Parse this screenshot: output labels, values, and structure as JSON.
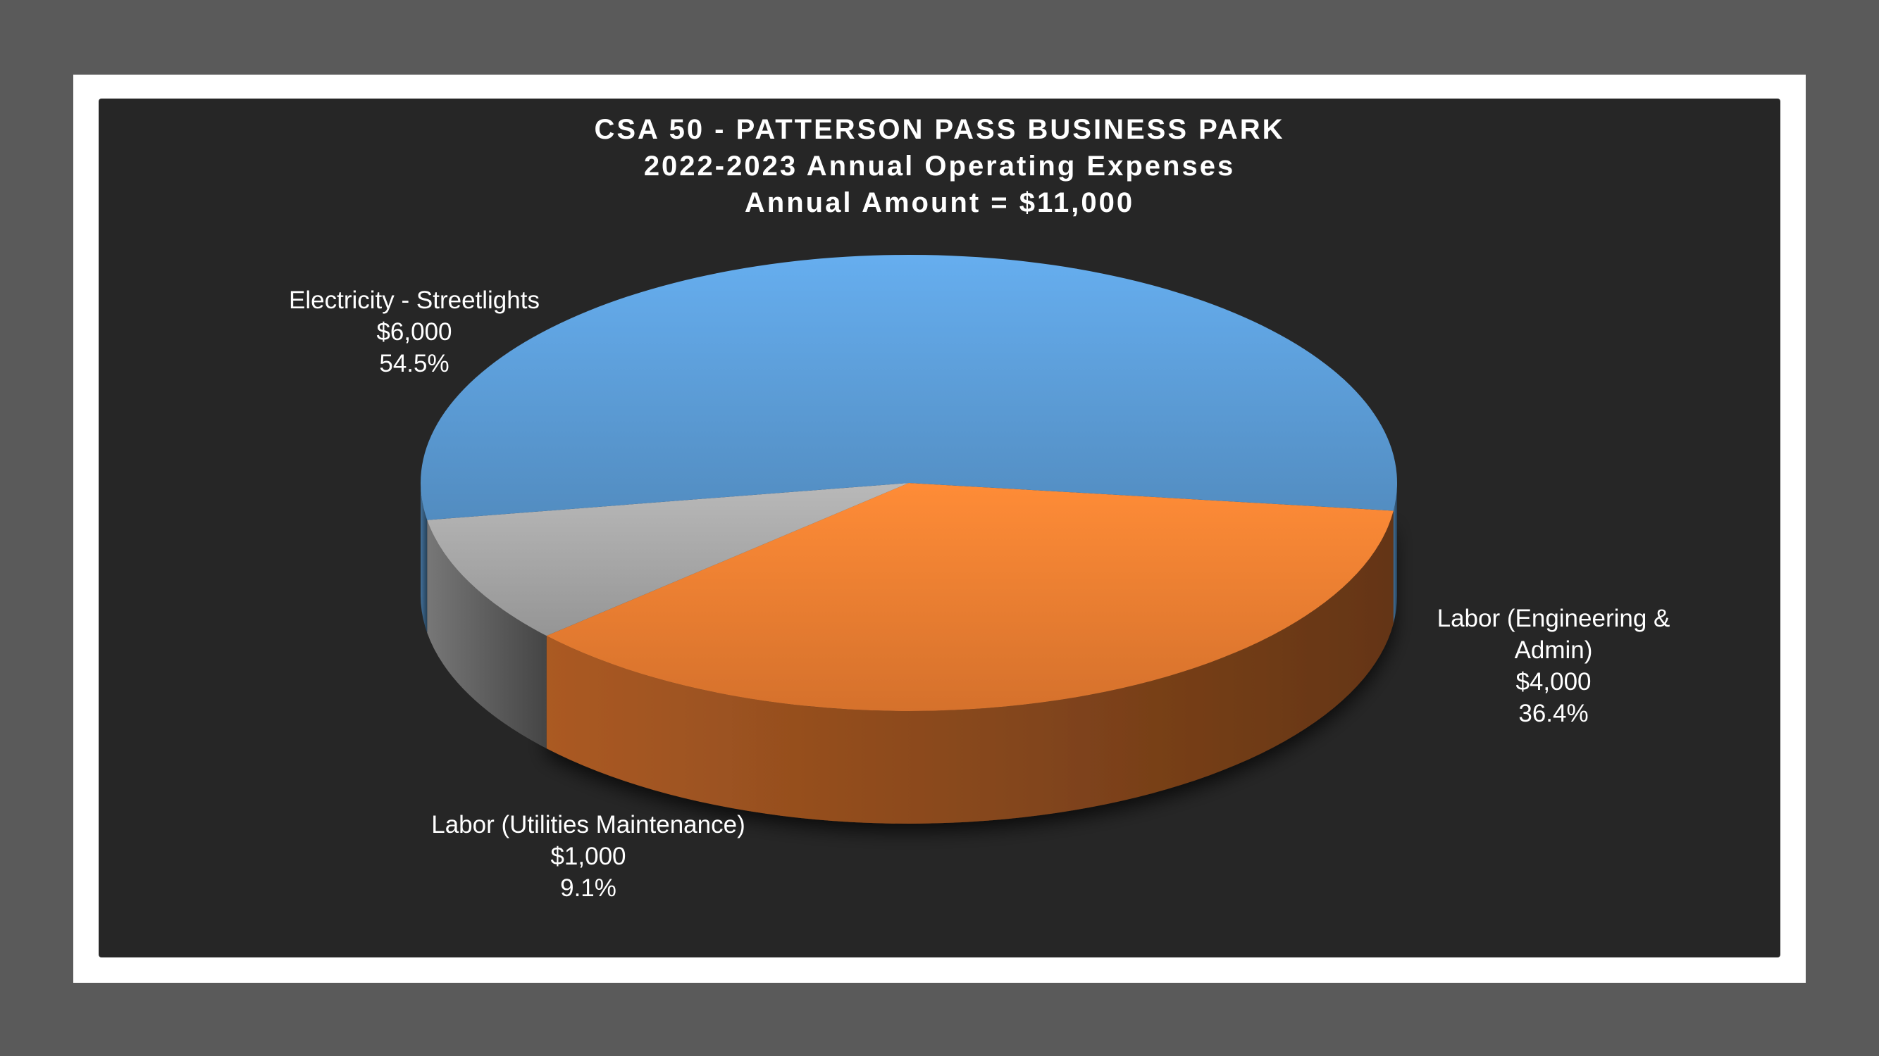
{
  "chart_data": {
    "type": "pie",
    "style": "3d",
    "title": [
      "CSA 50 - PATTERSON PASS BUSINESS PARK",
      "2022-2023 Annual Operating Expenses",
      "Annual Amount = $11,000"
    ],
    "slices": [
      {
        "label_lines": [
          "Labor (Engineering &",
          "Admin)"
        ],
        "value": 4000,
        "value_label": "$4,000",
        "percent": 36.4,
        "percent_label": "36.4%",
        "color": "#ED7D31"
      },
      {
        "label_lines": [
          "Labor (Utilities Maintenance)"
        ],
        "value": 1000,
        "value_label": "$1,000",
        "percent": 9.1,
        "percent_label": "9.1%",
        "color": "#A5A5A5"
      },
      {
        "label_lines": [
          "Electricity - Streetlights"
        ],
        "value": 6000,
        "value_label": "$6,000",
        "percent": 54.5,
        "percent_label": "54.5%",
        "color": "#5B9BD5"
      }
    ]
  }
}
